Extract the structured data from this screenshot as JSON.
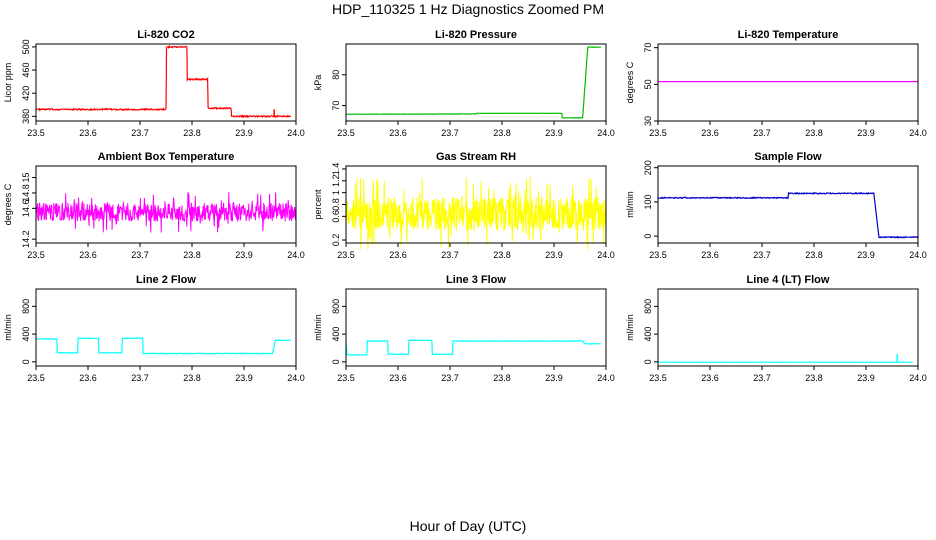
{
  "title": "HDP_110325  1 Hz Diagnostics Zoomed PM",
  "xlabel": "Hour of Day (UTC)",
  "chart_data": [
    {
      "type": "line",
      "title": "Li-820 CO2",
      "ylabel": "Licor ppm",
      "color": "#ff0000",
      "xlim": [
        23.5,
        24.0
      ],
      "xticks": [
        23.5,
        23.6,
        23.7,
        23.8,
        23.9,
        24.0
      ],
      "ylim": [
        372,
        505
      ],
      "yticks": [
        380,
        420,
        460,
        500
      ],
      "noise": 1.2,
      "series": [
        {
          "x": [
            23.5,
            23.75,
            23.751,
            23.79,
            23.791,
            23.83,
            23.831,
            23.875,
            23.876,
            23.99
          ],
          "y": [
            392,
            392,
            500,
            500,
            444,
            444,
            394,
            394,
            380,
            380
          ]
        }
      ],
      "spikes": [
        {
          "x": 23.958,
          "y": 392
        }
      ]
    },
    {
      "type": "line",
      "title": "Li-820 Pressure",
      "ylabel": "kPa",
      "color": "#00bb00",
      "xlim": [
        23.5,
        24.0
      ],
      "xticks": [
        23.5,
        23.6,
        23.7,
        23.8,
        23.9,
        24.0
      ],
      "ylim": [
        65,
        90
      ],
      "yticks": [
        70,
        80
      ],
      "noise": 0.05,
      "series": [
        {
          "x": [
            23.5,
            23.75,
            23.751,
            23.915,
            23.916,
            23.955,
            23.965,
            23.99
          ],
          "y": [
            67.2,
            67.3,
            67.5,
            67.5,
            66.0,
            66.0,
            89.0,
            89.0
          ]
        }
      ]
    },
    {
      "type": "line",
      "title": "Li-820 Temperature",
      "ylabel": "degrees C",
      "color": "#ff00ff",
      "xlim": [
        23.5,
        24.0
      ],
      "xticks": [
        23.5,
        23.6,
        23.7,
        23.8,
        23.9,
        24.0
      ],
      "ylim": [
        30,
        72
      ],
      "yticks": [
        30,
        50,
        70
      ],
      "noise": 0,
      "series": [
        {
          "x": [
            23.5,
            24.0
          ],
          "y": [
            51.5,
            51.5
          ]
        }
      ]
    },
    {
      "type": "line",
      "title": "Ambient Box Temperature",
      "ylabel": "degrees C",
      "color": "#ff00ff",
      "xlim": [
        23.5,
        24.0
      ],
      "xticks": [
        23.5,
        23.6,
        23.7,
        23.8,
        23.9,
        24.0
      ],
      "ylim": [
        14.15,
        15.15
      ],
      "yticks": [
        14.2,
        14.6,
        14.8,
        15.0
      ],
      "noise": 0.12,
      "dense": true,
      "series": [
        {
          "x": [
            23.5,
            24.0
          ],
          "y": [
            14.55,
            14.55
          ]
        }
      ]
    },
    {
      "type": "line",
      "title": "Gas Stream RH",
      "ylabel": "percent",
      "color": "#ffff00",
      "xlim": [
        23.5,
        24.0
      ],
      "xticks": [
        23.5,
        23.6,
        23.7,
        23.8,
        23.9,
        24.0
      ],
      "ylim": [
        0.15,
        1.45
      ],
      "yticks": [
        0.2,
        0.6,
        0.8,
        1.0,
        1.2,
        1.4
      ],
      "noise": 0.28,
      "dense": true,
      "series": [
        {
          "x": [
            23.5,
            24.0
          ],
          "y": [
            0.65,
            0.65
          ]
        }
      ]
    },
    {
      "type": "line",
      "title": "Sample Flow",
      "ylabel": "ml/min",
      "color": "#0000cc",
      "xlim": [
        23.5,
        24.0
      ],
      "xticks": [
        23.5,
        23.6,
        23.7,
        23.8,
        23.9,
        24.0
      ],
      "ylim": [
        -20,
        205
      ],
      "yticks": [
        0,
        100,
        200
      ],
      "noise": 1.5,
      "series": [
        {
          "x": [
            23.5,
            23.75,
            23.751,
            23.915,
            23.925,
            24.0
          ],
          "y": [
            112,
            112,
            125,
            125,
            -3,
            -3
          ]
        }
      ]
    },
    {
      "type": "line",
      "title": "Line 2 Flow",
      "ylabel": "ml/min",
      "color": "#00ffff",
      "xlim": [
        23.5,
        24.0
      ],
      "xticks": [
        23.5,
        23.6,
        23.7,
        23.8,
        23.9,
        24.0
      ],
      "ylim": [
        -60,
        1050
      ],
      "yticks": [
        0,
        400,
        800
      ],
      "noise": 4,
      "series": [
        {
          "x": [
            23.5,
            23.54,
            23.541,
            23.58,
            23.581,
            23.62,
            23.621,
            23.665,
            23.666,
            23.705,
            23.706,
            23.955,
            23.96,
            23.99
          ],
          "y": [
            330,
            330,
            130,
            130,
            340,
            340,
            130,
            130,
            340,
            340,
            120,
            120,
            310,
            310
          ]
        }
      ]
    },
    {
      "type": "line",
      "title": "Line 3 Flow",
      "ylabel": "ml/min",
      "color": "#00ffff",
      "xlim": [
        23.5,
        24.0
      ],
      "xticks": [
        23.5,
        23.6,
        23.7,
        23.8,
        23.9,
        24.0
      ],
      "ylim": [
        -60,
        1050
      ],
      "yticks": [
        0,
        400,
        800
      ],
      "noise": 3,
      "series": [
        {
          "x": [
            23.5,
            23.502,
            23.54,
            23.541,
            23.58,
            23.581,
            23.62,
            23.621,
            23.665,
            23.666,
            23.705,
            23.706,
            23.955,
            23.96,
            23.99
          ],
          "y": [
            300,
            100,
            100,
            300,
            300,
            110,
            110,
            310,
            310,
            110,
            110,
            300,
            300,
            260,
            260
          ]
        }
      ]
    },
    {
      "type": "line",
      "title": "Line 4 (LT) Flow",
      "ylabel": "ml/min",
      "color": "#00ffff",
      "xlim": [
        23.5,
        24.0
      ],
      "xticks": [
        23.5,
        23.6,
        23.7,
        23.8,
        23.9,
        24.0
      ],
      "ylim": [
        -60,
        1050
      ],
      "yticks": [
        0,
        400,
        800
      ],
      "noise": 1,
      "series": [
        {
          "x": [
            23.5,
            23.99
          ],
          "y": [
            -5,
            -5
          ]
        }
      ],
      "spikes": [
        {
          "x": 23.96,
          "y": 110
        }
      ]
    }
  ]
}
